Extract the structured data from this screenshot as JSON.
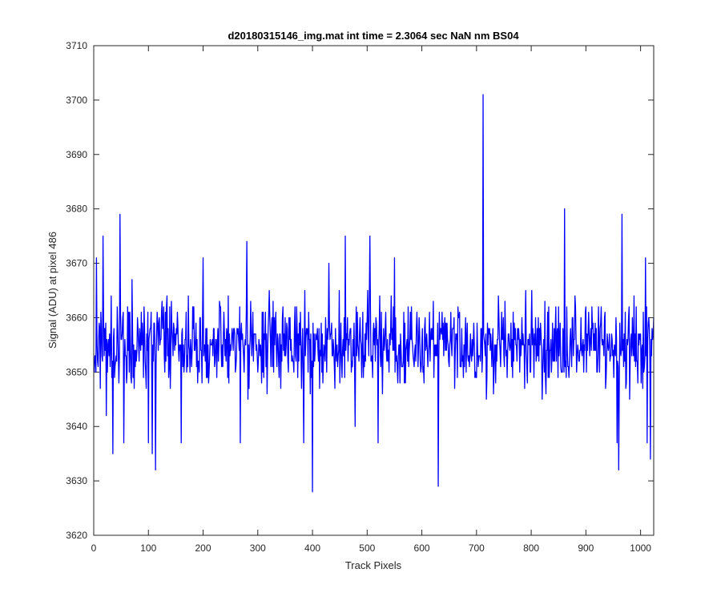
{
  "chart_data": {
    "type": "line",
    "title": "d20180315146_img.mat int time = 2.3064 sec  NaN nm BS04",
    "xlabel": "Track Pixels",
    "ylabel": "Signal (ADU) at pixel 486",
    "xlim": [
      0,
      1024
    ],
    "ylim": [
      3620,
      3710
    ],
    "xticks": [
      0,
      100,
      200,
      300,
      400,
      500,
      600,
      700,
      800,
      900,
      1000
    ],
    "yticks": [
      3620,
      3630,
      3640,
      3650,
      3660,
      3670,
      3680,
      3690,
      3700,
      3710
    ],
    "xtick_labels": [
      "0",
      "100",
      "200",
      "300",
      "400",
      "500",
      "600",
      "700",
      "800",
      "900",
      "1000"
    ],
    "ytick_labels": [
      "3620",
      "3630",
      "3640",
      "3650",
      "3660",
      "3670",
      "3680",
      "3690",
      "3700",
      "3710"
    ],
    "grid": false,
    "legend": "none",
    "colors": {
      "line": "#0000ff",
      "axes": "#262626",
      "background": "#ffffff"
    },
    "series": [
      {
        "n_points": 1024,
        "x_start": 1,
        "x_step": 1,
        "typical_range": [
          3635,
          3675
        ],
        "sampled_peaks": [
          {
            "x": 1,
            "y": 3650
          },
          {
            "x": 5,
            "y": 3671
          },
          {
            "x": 12,
            "y": 3647
          },
          {
            "x": 17,
            "y": 3675
          },
          {
            "x": 23,
            "y": 3642
          },
          {
            "x": 35,
            "y": 3635
          },
          {
            "x": 48,
            "y": 3679
          },
          {
            "x": 55,
            "y": 3637
          },
          {
            "x": 70,
            "y": 3667
          },
          {
            "x": 80,
            "y": 3660
          },
          {
            "x": 100,
            "y": 3637
          },
          {
            "x": 107,
            "y": 3635
          },
          {
            "x": 113,
            "y": 3632
          },
          {
            "x": 130,
            "y": 3650
          },
          {
            "x": 160,
            "y": 3637
          },
          {
            "x": 195,
            "y": 3660
          },
          {
            "x": 200,
            "y": 3671
          },
          {
            "x": 250,
            "y": 3655
          },
          {
            "x": 268,
            "y": 3637
          },
          {
            "x": 280,
            "y": 3674
          },
          {
            "x": 300,
            "y": 3650
          },
          {
            "x": 350,
            "y": 3660
          },
          {
            "x": 384,
            "y": 3637
          },
          {
            "x": 400,
            "y": 3628
          },
          {
            "x": 430,
            "y": 3670
          },
          {
            "x": 460,
            "y": 3675
          },
          {
            "x": 478,
            "y": 3640
          },
          {
            "x": 505,
            "y": 3675
          },
          {
            "x": 520,
            "y": 3637
          },
          {
            "x": 550,
            "y": 3671
          },
          {
            "x": 570,
            "y": 3648
          },
          {
            "x": 600,
            "y": 3655
          },
          {
            "x": 630,
            "y": 3629
          },
          {
            "x": 680,
            "y": 3660
          },
          {
            "x": 712,
            "y": 3701
          },
          {
            "x": 718,
            "y": 3645
          },
          {
            "x": 760,
            "y": 3655
          },
          {
            "x": 790,
            "y": 3665
          },
          {
            "x": 820,
            "y": 3645
          },
          {
            "x": 861,
            "y": 3680
          },
          {
            "x": 900,
            "y": 3662
          },
          {
            "x": 930,
            "y": 3655
          },
          {
            "x": 957,
            "y": 3637
          },
          {
            "x": 960,
            "y": 3632
          },
          {
            "x": 966,
            "y": 3679
          },
          {
            "x": 980,
            "y": 3645
          },
          {
            "x": 1009,
            "y": 3671
          },
          {
            "x": 1012,
            "y": 3637
          },
          {
            "x": 1018,
            "y": 3634
          },
          {
            "x": 1024,
            "y": 3660
          }
        ]
      }
    ]
  }
}
